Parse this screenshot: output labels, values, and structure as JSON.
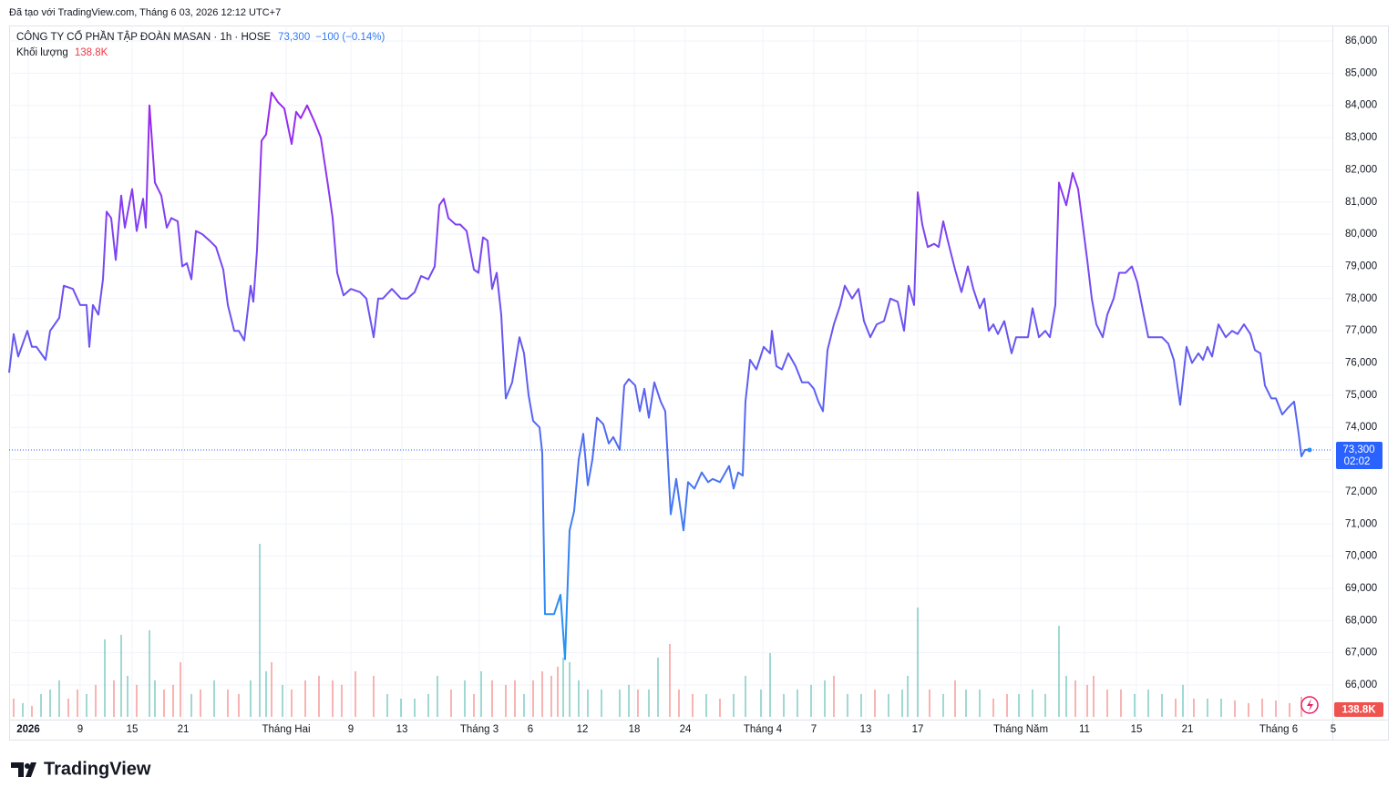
{
  "chart_data": {
    "type": "line",
    "watermark": "Đã tạo với TradingView.com, Tháng 6 03, 2026 12:12 UTC+7",
    "title": "CÔNG TY CỔ PHẦN TẬP ĐOÀN MASAN · 1h · HOSE",
    "last_price": 73300,
    "last_price_label": "73,300",
    "change_label": "−100 (−0.14%)",
    "countdown": "02:02",
    "brand": "TradingView",
    "grid": true,
    "ylim": [
      64925,
      86481
    ],
    "yticks": [
      {
        "value": 86000,
        "label": "86,000"
      },
      {
        "value": 85000,
        "label": "85,000"
      },
      {
        "value": 84000,
        "label": "84,000"
      },
      {
        "value": 83000,
        "label": "83,000"
      },
      {
        "value": 82000,
        "label": "82,000"
      },
      {
        "value": 81000,
        "label": "81,000"
      },
      {
        "value": 80000,
        "label": "80,000"
      },
      {
        "value": 79000,
        "label": "79,000"
      },
      {
        "value": 78000,
        "label": "78,000"
      },
      {
        "value": 77000,
        "label": "77,000"
      },
      {
        "value": 76000,
        "label": "76,000"
      },
      {
        "value": 75000,
        "label": "75,000"
      },
      {
        "value": 74000,
        "label": "74,000"
      },
      {
        "value": 73000,
        "label": "73,000"
      },
      {
        "value": 72000,
        "label": "72,000"
      },
      {
        "value": 71000,
        "label": "71,000"
      },
      {
        "value": 70000,
        "label": "70,000"
      },
      {
        "value": 69000,
        "label": "69,000"
      },
      {
        "value": 68000,
        "label": "68,000"
      },
      {
        "value": 67000,
        "label": "67,000"
      },
      {
        "value": 66000,
        "label": "66,000"
      }
    ],
    "xlim": [
      10,
      1465
    ],
    "xticks": [
      {
        "value": 31,
        "label": "2026"
      },
      {
        "value": 88,
        "label": "9"
      },
      {
        "value": 145,
        "label": "15"
      },
      {
        "value": 201,
        "label": "21"
      },
      {
        "value": 314,
        "label": "Tháng Hai"
      },
      {
        "value": 385,
        "label": "9"
      },
      {
        "value": 441,
        "label": "13"
      },
      {
        "value": 526,
        "label": "Tháng 3"
      },
      {
        "value": 582,
        "label": "6"
      },
      {
        "value": 639,
        "label": "12"
      },
      {
        "value": 696,
        "label": "18"
      },
      {
        "value": 752,
        "label": "24"
      },
      {
        "value": 837,
        "label": "Tháng 4"
      },
      {
        "value": 893,
        "label": "7"
      },
      {
        "value": 950,
        "label": "13"
      },
      {
        "value": 1007,
        "label": "17"
      },
      {
        "value": 1120,
        "label": "Tháng Năm"
      },
      {
        "value": 1190,
        "label": "11"
      },
      {
        "value": 1247,
        "label": "15"
      },
      {
        "value": 1303,
        "label": "21"
      },
      {
        "value": 1403,
        "label": "Tháng 6"
      },
      {
        "value": 1463,
        "label": "5"
      }
    ],
    "colors": {
      "line_top": "#9c27f0",
      "line_bottom": "#2196f3",
      "last_price": "#2962ff"
    },
    "series": [
      {
        "color": "#7b4cf0",
        "x": [
          10,
          15,
          20,
          30,
          35,
          40,
          50,
          55,
          65,
          70,
          80,
          88,
          95,
          98,
          102,
          108,
          113,
          117,
          122,
          127,
          133,
          137,
          145,
          150,
          157,
          160,
          164,
          170,
          177,
          183,
          188,
          195,
          200,
          205,
          210,
          215,
          222,
          230,
          237,
          245,
          250,
          257,
          262,
          268,
          275,
          278,
          282,
          287,
          292,
          298,
          305,
          312,
          320,
          325,
          330,
          337,
          345,
          352,
          360,
          365,
          370,
          377,
          385,
          395,
          402,
          410,
          415,
          420,
          430,
          440,
          447,
          455,
          462,
          470,
          477,
          482,
          487,
          492,
          500,
          505,
          512,
          520,
          525,
          530,
          535,
          540,
          545,
          550,
          555,
          562,
          570,
          575,
          580,
          585,
          592,
          595,
          598,
          608,
          615,
          620,
          625,
          630,
          635,
          640,
          645,
          650,
          655,
          662,
          668,
          673,
          680,
          685,
          690,
          697,
          702,
          707,
          712,
          718,
          725,
          730,
          736,
          742,
          750,
          755,
          762,
          770,
          777,
          782,
          790,
          800,
          805,
          810,
          815,
          818,
          823,
          830,
          838,
          845,
          847,
          852,
          858,
          865,
          873,
          880,
          887,
          893,
          898,
          903,
          908,
          915,
          922,
          927,
          935,
          942,
          948,
          955,
          962,
          970,
          977,
          985,
          992,
          997,
          1003,
          1007,
          1012,
          1018,
          1025,
          1030,
          1035,
          1040,
          1048,
          1055,
          1062,
          1068,
          1075,
          1080,
          1085,
          1090,
          1095,
          1102,
          1110,
          1115,
          1120,
          1128,
          1133,
          1140,
          1147,
          1152,
          1158,
          1162,
          1170,
          1177,
          1183,
          1188,
          1193,
          1198,
          1203,
          1210,
          1215,
          1222,
          1228,
          1235,
          1242,
          1248,
          1255,
          1260,
          1268,
          1275,
          1282,
          1288,
          1295,
          1302,
          1308,
          1315,
          1320,
          1325,
          1330,
          1337,
          1345,
          1352,
          1358,
          1365,
          1372,
          1377,
          1383,
          1388,
          1395,
          1400,
          1407,
          1413,
          1420,
          1425,
          1428,
          1432,
          1437
        ],
        "values": [
          75700,
          76900,
          76200,
          77000,
          76500,
          76500,
          76100,
          77000,
          77400,
          78400,
          78300,
          77800,
          77800,
          76500,
          77800,
          77500,
          78600,
          80700,
          80500,
          79200,
          81200,
          80200,
          81400,
          80100,
          81100,
          80200,
          84000,
          81600,
          81200,
          80200,
          80500,
          80400,
          79000,
          79100,
          78600,
          80100,
          80000,
          79800,
          79600,
          78900,
          77800,
          77000,
          77000,
          76700,
          78400,
          77900,
          79500,
          82900,
          83100,
          84400,
          84100,
          83900,
          82800,
          83800,
          83600,
          84000,
          83500,
          83000,
          81500,
          80500,
          78800,
          78100,
          78300,
          78200,
          78000,
          76800,
          78000,
          78000,
          78300,
          78000,
          78000,
          78200,
          78700,
          78600,
          79000,
          80900,
          81100,
          80500,
          80300,
          80300,
          80100,
          78900,
          78800,
          79900,
          79800,
          78300,
          78800,
          77500,
          74900,
          75400,
          76800,
          76300,
          75000,
          74200,
          74000,
          73200,
          68200,
          68200,
          68800,
          66800,
          70800,
          71400,
          73000,
          73800,
          72200,
          73000,
          74300,
          74100,
          73500,
          73700,
          73300,
          75300,
          75500,
          75300,
          74500,
          75200,
          74300,
          75400,
          74800,
          74500,
          71300,
          72400,
          70800,
          72300,
          72100,
          72600,
          72300,
          72400,
          72300,
          72800,
          72100,
          72600,
          72500,
          74800,
          76100,
          75800,
          76500,
          76300,
          77000,
          75900,
          75800,
          76300,
          75900,
          75400,
          75400,
          75200,
          74800,
          74500,
          76400,
          77200,
          77800,
          78400,
          78000,
          78300,
          77300,
          76800,
          77200,
          77300,
          78000,
          77900,
          77000,
          78400,
          77800,
          81300,
          80300,
          79600,
          79700,
          79600,
          80400,
          79800,
          78900,
          78200,
          79000,
          78300,
          77700,
          78000,
          77000,
          77200,
          76900,
          77300,
          76300,
          76800,
          76800,
          76800,
          77700,
          76800,
          77000,
          76800,
          77800,
          81600,
          80900,
          81900,
          81400,
          80300,
          79200,
          78000,
          77200,
          76800,
          77500,
          78000,
          78800,
          78800,
          79000,
          78500,
          77500,
          76800,
          76800,
          76800,
          76600,
          76100,
          74700,
          76500,
          76000,
          76300,
          76100,
          76500,
          76200,
          77200,
          76800,
          77000,
          76900,
          77200,
          76900,
          76400,
          76300,
          75300,
          74900,
          74900,
          74400,
          74600,
          74800,
          73800,
          73100,
          73300,
          73300
        ]
      }
    ],
    "volume": {
      "title": "Khối lượng",
      "volume_label": "138.8K",
      "up_color": "#26a69a",
      "down_color": "#ef5350",
      "x": [
        15,
        25,
        35,
        45,
        55,
        65,
        75,
        85,
        95,
        105,
        115,
        125,
        133,
        140,
        150,
        164,
        170,
        180,
        190,
        198,
        210,
        220,
        235,
        250,
        262,
        275,
        285,
        292,
        298,
        310,
        320,
        335,
        350,
        365,
        375,
        390,
        410,
        425,
        440,
        455,
        470,
        480,
        495,
        510,
        520,
        528,
        540,
        555,
        565,
        575,
        585,
        595,
        605,
        612,
        618,
        625,
        635,
        645,
        660,
        680,
        690,
        700,
        712,
        722,
        735,
        745,
        760,
        775,
        790,
        805,
        818,
        835,
        845,
        860,
        875,
        890,
        905,
        915,
        930,
        945,
        960,
        975,
        990,
        996,
        1007,
        1020,
        1035,
        1048,
        1060,
        1075,
        1090,
        1105,
        1118,
        1133,
        1147,
        1162,
        1170,
        1180,
        1193,
        1200,
        1215,
        1230,
        1245,
        1260,
        1275,
        1290,
        1298,
        1310,
        1325,
        1340,
        1355,
        1370,
        1385,
        1400,
        1415,
        1428
      ],
      "values": [
        126,
        95,
        76,
        158,
        189,
        252,
        126,
        189,
        158,
        221,
        536,
        252,
        567,
        284,
        221,
        599,
        252,
        189,
        221,
        378,
        158,
        189,
        252,
        189,
        158,
        252,
        1197,
        315,
        378,
        221,
        189,
        252,
        284,
        252,
        221,
        315,
        284,
        158,
        126,
        126,
        158,
        284,
        189,
        252,
        158,
        315,
        252,
        221,
        252,
        158,
        252,
        315,
        284,
        347,
        410,
        378,
        252,
        189,
        189,
        189,
        221,
        189,
        189,
        410,
        504,
        189,
        158,
        158,
        126,
        158,
        284,
        189,
        441,
        158,
        189,
        221,
        252,
        284,
        158,
        158,
        189,
        158,
        189,
        284,
        756,
        189,
        158,
        252,
        189,
        189,
        126,
        158,
        158,
        189,
        158,
        630,
        284,
        252,
        221,
        284,
        189,
        189,
        158,
        189,
        158,
        126,
        221,
        126,
        126,
        126,
        113,
        95,
        126,
        113,
        95,
        138.8
      ],
      "up": [
        false,
        true,
        false,
        true,
        true,
        true,
        false,
        false,
        true,
        false,
        true,
        false,
        true,
        true,
        false,
        true,
        true,
        false,
        false,
        false,
        true,
        false,
        true,
        false,
        false,
        true,
        true,
        true,
        false,
        true,
        false,
        false,
        false,
        false,
        false,
        false,
        false,
        true,
        true,
        true,
        true,
        true,
        false,
        true,
        false,
        true,
        false,
        false,
        false,
        true,
        false,
        false,
        false,
        false,
        true,
        true,
        true,
        true,
        true,
        true,
        true,
        false,
        true,
        true,
        false,
        false,
        false,
        true,
        false,
        true,
        true,
        true,
        true,
        true,
        true,
        true,
        true,
        false,
        true,
        true,
        false,
        true,
        true,
        true,
        true,
        false,
        true,
        false,
        true,
        true,
        false,
        false,
        true,
        true,
        true,
        true,
        true,
        false,
        false,
        false,
        false,
        false,
        true,
        true,
        true,
        false,
        true,
        false,
        true,
        true,
        false,
        false,
        false,
        false,
        false,
        false
      ]
    }
  }
}
